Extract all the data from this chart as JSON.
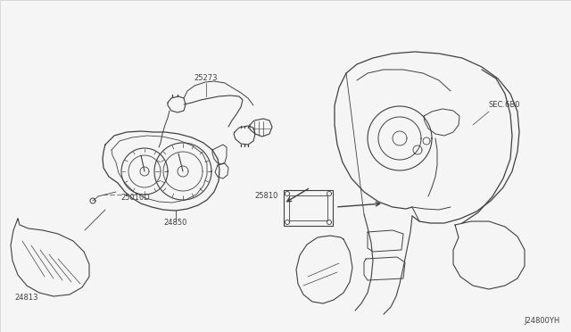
{
  "background_color": "#f5f5f5",
  "line_color": "#404040",
  "text_color": "#404040",
  "diagram_id": "J24800YH",
  "sec_label": "SEC.6B0",
  "figsize": [
    6.4,
    3.72
  ],
  "dpi": 100,
  "border_color": "#cccccc",
  "font_size": 6.0
}
